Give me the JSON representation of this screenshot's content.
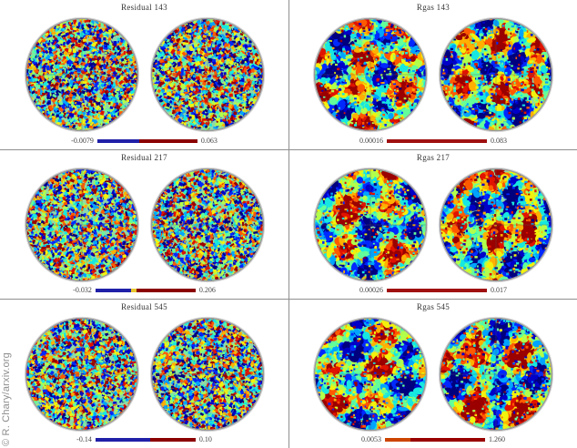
{
  "watermark": "© R. Chary/arxiv.org",
  "colormap_colors": [
    "#00007f",
    "#0000c8",
    "#0028ff",
    "#00a4ff",
    "#16e7e1",
    "#63ff9a",
    "#b2ff4c",
    "#f2f20d",
    "#ffb000",
    "#ff5a00",
    "#e01300",
    "#9b0000"
  ],
  "panels": [
    {
      "title": "Residual 143",
      "type": "residual",
      "colorbar": {
        "min": "-0.0079",
        "max": "0.063",
        "segments": [
          {
            "color": "#2020a8",
            "frac": 0.42
          },
          {
            "color": "#8b0000",
            "frac": 0.58
          }
        ]
      }
    },
    {
      "title": "Rgas 143",
      "type": "rgas",
      "colorbar": {
        "min": "0.00016",
        "max": "0.083",
        "segments": [
          {
            "color": "#a01010",
            "frac": 1.0
          }
        ]
      }
    },
    {
      "title": "Residual 217",
      "type": "residual",
      "colorbar": {
        "min": "-0.032",
        "max": "0.206",
        "segments": [
          {
            "color": "#2020a8",
            "frac": 0.36
          },
          {
            "color": "#e8c830",
            "frac": 0.05
          },
          {
            "color": "#8b0000",
            "frac": 0.59
          }
        ]
      }
    },
    {
      "title": "Rgas 217",
      "type": "rgas",
      "colorbar": {
        "min": "0.00026",
        "max": "0.017",
        "segments": [
          {
            "color": "#a01010",
            "frac": 1.0
          }
        ]
      }
    },
    {
      "title": "Residual 545",
      "type": "residual",
      "colorbar": {
        "min": "-0.14",
        "max": "0.10",
        "segments": [
          {
            "color": "#2020a8",
            "frac": 0.55
          },
          {
            "color": "#8b0000",
            "frac": 0.45
          }
        ]
      }
    },
    {
      "title": "Rgas 545",
      "type": "rgas",
      "colorbar": {
        "min": "0.0053",
        "max": "1.260",
        "segments": [
          {
            "color": "#cc4400",
            "frac": 0.25
          },
          {
            "color": "#990000",
            "frac": 0.75
          }
        ]
      }
    }
  ],
  "chart_data": [
    {
      "type": "heatmap",
      "title": "Residual 143",
      "layout": "two circular sky-map hemispheres",
      "colormap": "blue-to-red (jet)",
      "colorbar_min_label": "-0.0079",
      "colorbar_max_label": "0.063"
    },
    {
      "type": "heatmap",
      "title": "Rgas 143",
      "layout": "two circular sky-map hemispheres",
      "colormap": "blue-to-red (jet)",
      "colorbar_min_label": "0.00016",
      "colorbar_max_label": "0.083"
    },
    {
      "type": "heatmap",
      "title": "Residual 217",
      "layout": "two circular sky-map hemispheres",
      "colormap": "blue-to-red (jet)",
      "colorbar_min_label": "-0.032",
      "colorbar_max_label": "0.206"
    },
    {
      "type": "heatmap",
      "title": "Rgas 217",
      "layout": "two circular sky-map hemispheres",
      "colormap": "blue-to-red (jet)",
      "colorbar_min_label": "0.00026",
      "colorbar_max_label": "0.017"
    },
    {
      "type": "heatmap",
      "title": "Residual 545",
      "layout": "two circular sky-map hemispheres",
      "colormap": "blue-to-red (jet)",
      "colorbar_min_label": "-0.14",
      "colorbar_max_label": "0.10"
    },
    {
      "type": "heatmap",
      "title": "Rgas 545",
      "layout": "two circular sky-map hemispheres",
      "colormap": "blue-to-red (jet)",
      "colorbar_min_label": "0.0053",
      "colorbar_max_label": "1.260"
    }
  ]
}
